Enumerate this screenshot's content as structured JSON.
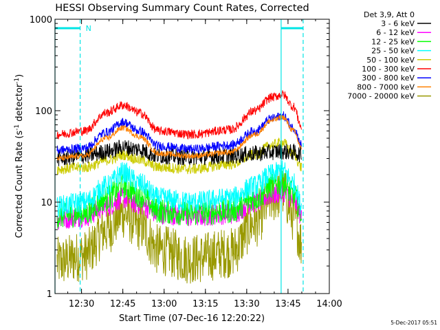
{
  "chart_data": {
    "type": "line",
    "title": "HESSI Observing Summary Count Rates, Corrected",
    "xlabel": "Start Time (07-Dec-16 12:20:22)",
    "ylabel": "Corrected Count Rate (s",
    "ylabel_sup1": "-1",
    "ylabel_mid": " detector",
    "ylabel_sup2": "-1",
    "ylabel_end": ")",
    "yscale": "log",
    "ylim": [
      1,
      1000
    ],
    "xlim_minutes": [
      "12:20:22",
      "14:00"
    ],
    "xticks": [
      "12:30",
      "12:45",
      "13:00",
      "13:15",
      "13:30",
      "13:45",
      "14:00"
    ],
    "yticks": [
      "1",
      "10",
      "100",
      "1000"
    ],
    "legend_title": "Det 3,9, Att 0",
    "legend_position": "top-right outside",
    "annotations": {
      "night_marker": "N",
      "night_intervals": [
        [
          "12:20:22",
          "12:29:30"
        ],
        [
          "13:42:30",
          "13:50:30"
        ]
      ],
      "dashed_boundaries": [
        "12:29:30",
        "13:50:30"
      ],
      "solid_boundaries": [
        "12:20:22",
        "13:42:30"
      ]
    },
    "footer_date": "5-Dec-2017 05:51",
    "series": [
      {
        "name": "3 - 6 keV",
        "color": "#000000",
        "x": [
          "12:21",
          "12:31",
          "12:40",
          "12:45",
          "12:50",
          "12:58",
          "13:10",
          "13:24",
          "13:33",
          "13:38",
          "13:42",
          "13:47",
          "13:50"
        ],
        "y": [
          30,
          32,
          36,
          40,
          38,
          32,
          31,
          32,
          34,
          35,
          36,
          35,
          33
        ]
      },
      {
        "name": "6 - 12 keV",
        "color": "#ff00ff",
        "x": [
          "12:21",
          "12:31",
          "12:39",
          "12:45",
          "12:51",
          "12:58",
          "13:10",
          "13:24",
          "13:33",
          "13:39",
          "13:43",
          "13:47",
          "13:50"
        ],
        "y": [
          6.5,
          7,
          9,
          11,
          9.5,
          7.5,
          7,
          7.5,
          10,
          12,
          13,
          10.5,
          7
        ]
      },
      {
        "name": "12 - 25 keV",
        "color": "#00ff00",
        "x": [
          "12:21",
          "12:31",
          "12:39",
          "12:45",
          "12:51",
          "12:58",
          "13:10",
          "13:24",
          "13:33",
          "13:39",
          "13:43",
          "13:47",
          "13:50"
        ],
        "y": [
          7,
          7.5,
          11,
          15,
          12,
          8,
          7.5,
          8,
          11,
          15,
          16,
          12,
          7.5
        ]
      },
      {
        "name": "25 - 50 keV",
        "color": "#00ffff",
        "x": [
          "12:21",
          "12:31",
          "12:39",
          "12:45",
          "12:51",
          "12:58",
          "13:10",
          "13:24",
          "13:33",
          "13:39",
          "13:43",
          "13:47",
          "13:50"
        ],
        "y": [
          9,
          10,
          15,
          21,
          16,
          11,
          10,
          11,
          15,
          20,
          22,
          16,
          9
        ]
      },
      {
        "name": "50 - 100 keV",
        "color": "#cccc00",
        "x": [
          "12:21",
          "12:31",
          "12:40",
          "12:45",
          "12:51",
          "12:58",
          "13:10",
          "13:24",
          "13:33",
          "13:39",
          "13:43",
          "13:47",
          "13:50"
        ],
        "y": [
          23,
          24,
          29,
          33,
          29,
          24,
          23,
          26,
          33,
          42,
          45,
          33,
          24
        ]
      },
      {
        "name": "100 - 300 keV",
        "color": "#ff0000",
        "x": [
          "12:21",
          "12:31",
          "12:39",
          "12:45",
          "12:51",
          "12:58",
          "13:10",
          "13:24",
          "13:33",
          "13:39",
          "13:43",
          "13:47",
          "13:50"
        ],
        "y": [
          55,
          60,
          95,
          115,
          95,
          60,
          55,
          62,
          100,
          140,
          150,
          110,
          65
        ]
      },
      {
        "name": "300 - 800 keV",
        "color": "#0000ff",
        "x": [
          "12:21",
          "12:31",
          "12:39",
          "12:45",
          "12:51",
          "12:58",
          "13:10",
          "13:24",
          "13:33",
          "13:39",
          "13:43",
          "13:47",
          "13:50"
        ],
        "y": [
          37,
          39,
          58,
          75,
          60,
          41,
          38,
          42,
          60,
          82,
          88,
          65,
          42
        ]
      },
      {
        "name": "800 - 7000 keV",
        "color": "#ff8000",
        "x": [
          "12:21",
          "12:31",
          "12:39",
          "12:45",
          "12:51",
          "12:58",
          "13:10",
          "13:24",
          "13:33",
          "13:39",
          "13:43",
          "13:47",
          "13:50"
        ],
        "y": [
          30,
          32,
          50,
          65,
          52,
          34,
          32,
          35,
          55,
          78,
          85,
          60,
          38
        ]
      },
      {
        "name": "7000 - 20000 keV",
        "color": "#999900",
        "x": [
          "12:21",
          "12:31",
          "12:39",
          "12:45",
          "12:51",
          "12:58",
          "13:10",
          "13:24",
          "13:33",
          "13:39",
          "13:43",
          "13:47",
          "13:50"
        ],
        "y": [
          2.2,
          2.6,
          5,
          7.5,
          5.5,
          3,
          2.4,
          2.8,
          6,
          11,
          13,
          7,
          3.5
        ]
      }
    ]
  }
}
